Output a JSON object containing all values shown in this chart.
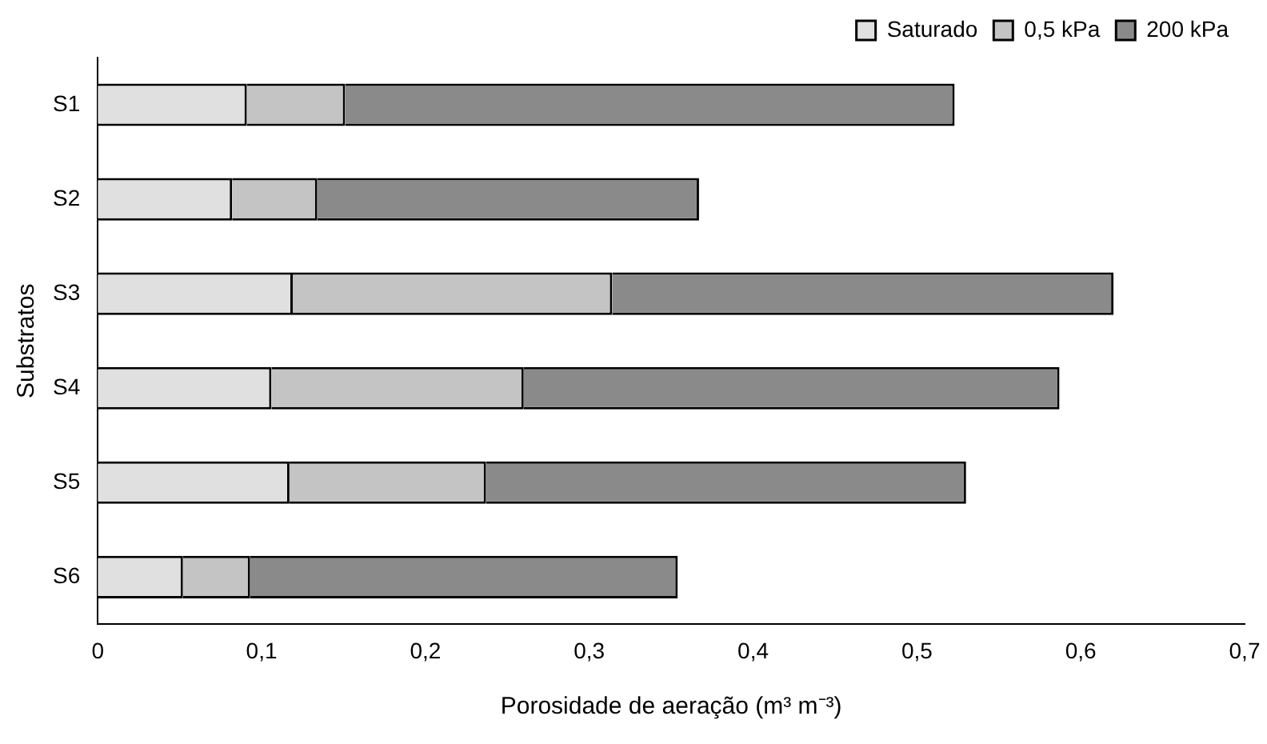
{
  "chart_data": {
    "type": "bar",
    "orientation": "horizontal",
    "stacked": true,
    "categories": [
      "S1",
      "S2",
      "S3",
      "S4",
      "S5",
      "S6"
    ],
    "series": [
      {
        "name": "Saturado",
        "color": "#e0e0e0",
        "values": [
          0.091,
          0.082,
          0.119,
          0.106,
          0.117,
          0.052
        ]
      },
      {
        "name": "0,5 kPa",
        "color": "#c4c4c4",
        "values": [
          0.06,
          0.052,
          0.195,
          0.154,
          0.12,
          0.041
        ]
      },
      {
        "name": "200 kPa",
        "color": "#8a8a8a",
        "values": [
          0.372,
          0.233,
          0.306,
          0.327,
          0.293,
          0.261
        ]
      }
    ],
    "xlabel": "Porosidade de aeração (m³ m⁻³)",
    "ylabel": "Substratos",
    "xlim": [
      0,
      0.7
    ],
    "xticks": [
      0,
      {
        "value": 0.1,
        "label": "0,1"
      },
      {
        "value": 0.2,
        "label": "0,2"
      },
      {
        "value": 0.3,
        "label": "0,3"
      },
      {
        "value": 0.4,
        "label": "0,4"
      },
      {
        "value": 0.5,
        "label": "0,5"
      },
      {
        "value": 0.6,
        "label": "0,6"
      },
      {
        "value": 0.7,
        "label": "0,7"
      }
    ],
    "grid": false,
    "legend": "top right"
  }
}
